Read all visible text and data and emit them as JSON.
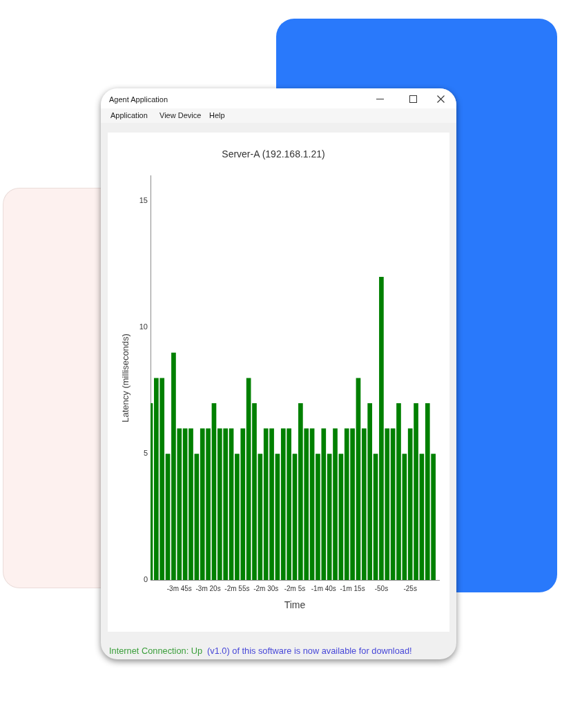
{
  "chart_data": {
    "type": "bar",
    "title": "Server-A (192.168.1.21)",
    "xlabel": "Time",
    "ylabel": "Latency (milliseconds)",
    "x": [
      -250,
      -245,
      -240,
      -235,
      -230,
      -225,
      -220,
      -215,
      -210,
      -205,
      -200,
      -195,
      -190,
      -185,
      -180,
      -175,
      -170,
      -165,
      -160,
      -155,
      -150,
      -145,
      -140,
      -135,
      -130,
      -125,
      -120,
      -115,
      -110,
      -105,
      -100,
      -95,
      -90,
      -85,
      -80,
      -75,
      -70,
      -65,
      -60,
      -55,
      -50,
      -45,
      -40,
      -35,
      -30,
      -25,
      -20,
      -15,
      -10,
      -5
    ],
    "values": [
      7,
      8,
      8,
      5,
      9,
      6,
      6,
      6,
      5,
      6,
      6,
      7,
      6,
      6,
      6,
      5,
      6,
      8,
      7,
      5,
      6,
      6,
      5,
      6,
      6,
      5,
      7,
      6,
      6,
      5,
      6,
      5,
      6,
      5,
      6,
      6,
      8,
      6,
      7,
      5,
      12,
      6,
      6,
      7,
      5,
      6,
      7,
      5,
      7,
      5
    ],
    "color": "#008000",
    "xlim": [
      -250,
      0
    ],
    "xticks": [
      {
        "value": -225,
        "label": "-3m 45s"
      },
      {
        "value": -200,
        "label": "-3m 20s"
      },
      {
        "value": -175,
        "label": "-2m 55s"
      },
      {
        "value": -150,
        "label": "-2m 30s"
      },
      {
        "value": -125,
        "label": "-2m 5s"
      },
      {
        "value": -100,
        "label": "-1m 40s"
      },
      {
        "value": -75,
        "label": "-1m 15s"
      },
      {
        "value": -50,
        "label": "-50s"
      },
      {
        "value": -25,
        "label": "-25s"
      }
    ],
    "ylim": [
      0,
      16
    ],
    "yticks": [
      0,
      5,
      10,
      15
    ],
    "annotations": [
      "Agent Application",
      "Application",
      "View Device",
      "Help",
      "Internet Connection: Up",
      "(v1.0) of this software is now available for download!"
    ]
  }
}
